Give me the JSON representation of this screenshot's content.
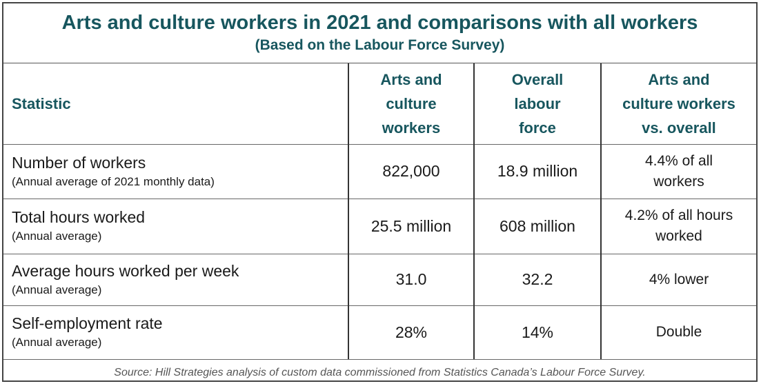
{
  "title": "Arts and culture workers in 2021 and comparisons with all workers",
  "subtitle": "(Based on the Labour Force Survey)",
  "headers": {
    "statistic": "Statistic",
    "arts": [
      "Arts and",
      "culture",
      "workers"
    ],
    "overall": [
      "Overall",
      "labour",
      "force"
    ],
    "comparison": [
      "Arts and",
      "culture workers",
      "vs. overall"
    ]
  },
  "rows": [
    {
      "label": "Number of workers",
      "note": "(Annual average of 2021 monthly data)",
      "arts": "822,000",
      "overall": "18.9 million",
      "comparison": [
        "4.4% of all",
        "workers"
      ]
    },
    {
      "label": "Total hours worked",
      "note": "(Annual average)",
      "arts": "25.5 million",
      "overall": "608 million",
      "comparison": [
        "4.2% of all hours",
        "worked"
      ]
    },
    {
      "label": "Average hours worked per week",
      "note": "(Annual average)",
      "arts": "31.0",
      "overall": "32.2",
      "comparison": [
        "4% lower"
      ]
    },
    {
      "label": "Self-employment rate",
      "note": "(Annual average)",
      "arts": "28%",
      "overall": "14%",
      "comparison": [
        "Double"
      ]
    }
  ],
  "source": "Source: Hill Strategies analysis of custom data commissioned from Statistics Canada’s Labour Force Survey.",
  "colors": {
    "heading": "#17565e",
    "text": "#1a1a1a",
    "source": "#555555"
  }
}
